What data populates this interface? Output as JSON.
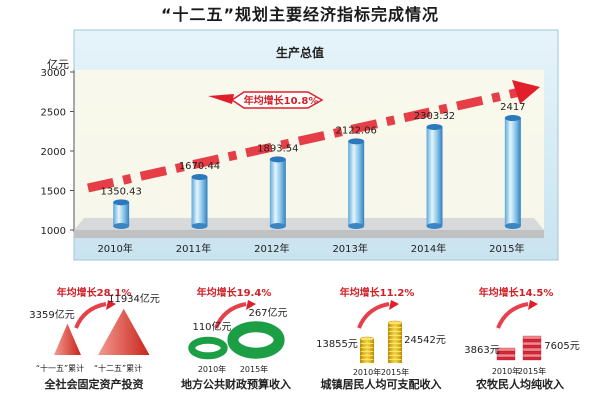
{
  "page_title": "“十二五”规划主要经济指标完成情况",
  "colors": {
    "panel_bg": "#d6ecf5",
    "bar_top": "#2a78be",
    "arrow_red": "#e21e2b",
    "floor_grey": "#bfc1c2",
    "pyramid_red": "#d9342b",
    "ring_green": "#1c9e45",
    "coin_gold": "#e6b400",
    "bill_red": "#d8263b",
    "label_red": "#d11f26"
  },
  "chart_data": [
    {
      "type": "bar",
      "title": "生产总值",
      "ylabel": "亿元",
      "ylim": [
        1000,
        3000
      ],
      "yticks": [
        "1000",
        "1500",
        "2000",
        "2500",
        "3000"
      ],
      "categories": [
        "2010年",
        "2011年",
        "2012年",
        "2013年",
        "2014年",
        "2015年"
      ],
      "values": [
        1350.43,
        1670.44,
        1893.54,
        2122.06,
        2303.32,
        2417
      ],
      "value_labels": [
        "1350.43",
        "1670.44",
        "1893.54",
        "2122.06",
        "2303.32",
        "2417"
      ],
      "annotation": "年均增长10.8%"
    },
    {
      "type": "bar",
      "title": "全社会固定资产投资",
      "growth": "年均增长28.1%",
      "categories": [
        "“十一五”累计",
        "“十二五”累计"
      ],
      "values": [
        3359,
        11934
      ],
      "value_labels": [
        "3359亿元",
        "11934亿元"
      ]
    },
    {
      "type": "bar",
      "title": "地方公共财政预算收入",
      "growth": "年均增长19.4%",
      "categories": [
        "2010年",
        "2015年"
      ],
      "values": [
        110,
        267
      ],
      "value_labels": [
        "110亿元",
        "267亿元"
      ]
    },
    {
      "type": "bar",
      "title": "城镇居民人均可支配收入",
      "growth": "年均增长11.2%",
      "categories": [
        "2010年",
        "2015年"
      ],
      "values": [
        13855,
        24542
      ],
      "value_labels": [
        "13855元",
        "24542元"
      ]
    },
    {
      "type": "bar",
      "title": "农牧民人均纯收入",
      "growth": "年均增长14.5%",
      "categories": [
        "2010年",
        "2015年"
      ],
      "values": [
        3863,
        7605
      ],
      "value_labels": [
        "3863元",
        "7605元"
      ]
    }
  ]
}
